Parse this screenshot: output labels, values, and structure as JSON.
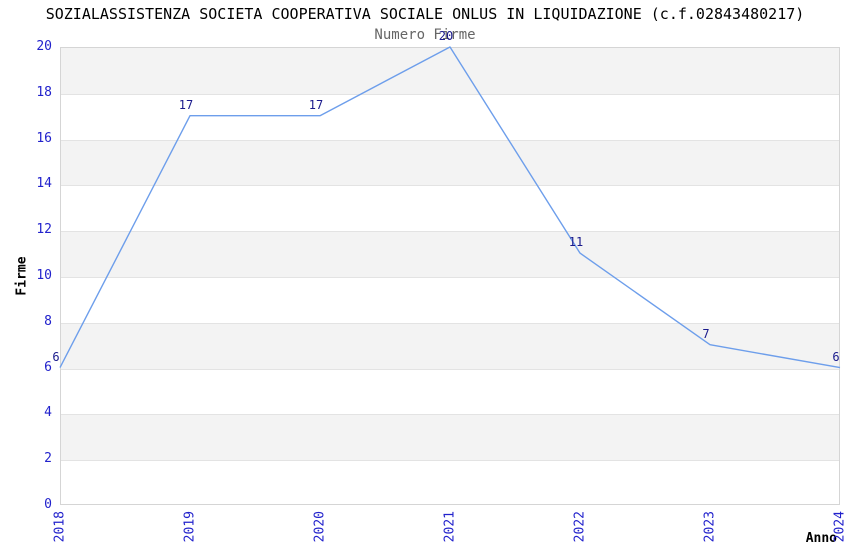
{
  "header": {
    "title": "SOZIALASSISTENZA SOCIETA COOPERATIVA SOCIALE ONLUS IN LIQUIDAZIONE (c.f.02843480217)",
    "subtitle": "Numero Firme"
  },
  "chart_data": {
    "type": "line",
    "title": "Numero Firme",
    "suptitle": "SOZIALASSISTENZA SOCIETA COOPERATIVA SOCIALE ONLUS IN LIQUIDAZIONE (c.f.02843480217)",
    "x": [
      2018,
      2019,
      2020,
      2021,
      2022,
      2023,
      2024
    ],
    "series": [
      {
        "name": "Numero Firme",
        "values": [
          6,
          17,
          17,
          20,
          11,
          7,
          6
        ]
      }
    ],
    "xlabel": "Anno",
    "ylabel": "Firme",
    "ylim": [
      0,
      20
    ],
    "yticks": [
      0,
      2,
      4,
      6,
      8,
      10,
      12,
      14,
      16,
      18,
      20
    ],
    "xticks": [
      "2018",
      "2019",
      "2020",
      "2021",
      "2022",
      "2023",
      "2024"
    ],
    "legend": "none",
    "grid": "horizontal gridlines with alternating shaded bands, x tick labels rotated 90",
    "colors": {
      "line": "#6d9eeb",
      "tick_label": "#2222cc",
      "data_label": "#1a1a8c",
      "band": "#f3f3f3",
      "gridline": "#e3e3e3",
      "border": "#d5d5d5",
      "subtitle": "#666666",
      "title": "#000000"
    }
  }
}
